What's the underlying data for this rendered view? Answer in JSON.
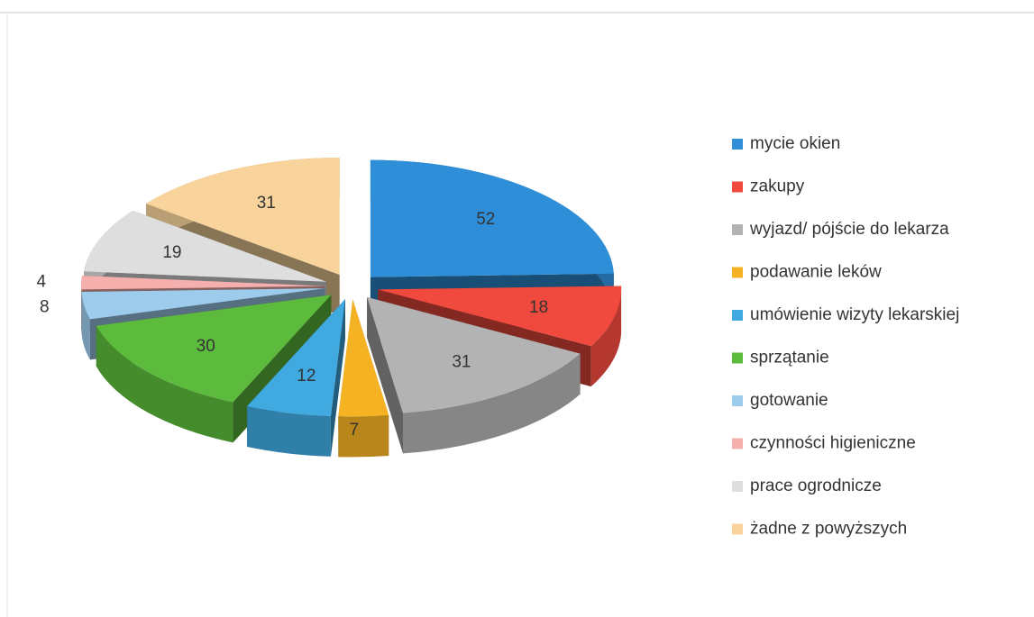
{
  "chart_data": {
    "type": "pie",
    "categories": [
      "mycie okien",
      "zakupy",
      "wyjazd/ pójście do lekarza",
      "podawanie leków",
      "umówienie wizyty lekarskiej",
      "sprzątanie",
      "gotowanie",
      "czynności higieniczne",
      "prace ogrodnicze",
      "żadne z powyższych"
    ],
    "values": [
      52,
      18,
      31,
      7,
      12,
      30,
      8,
      4,
      19,
      31
    ],
    "colors": [
      "#2e8fd8",
      "#f04a3e",
      "#b3b3b3",
      "#f5b324",
      "#3fa9e0",
      "#5cba3c",
      "#9ccbec",
      "#f5b0ae",
      "#dedede",
      "#f8d49c"
    ],
    "legend": "right"
  }
}
